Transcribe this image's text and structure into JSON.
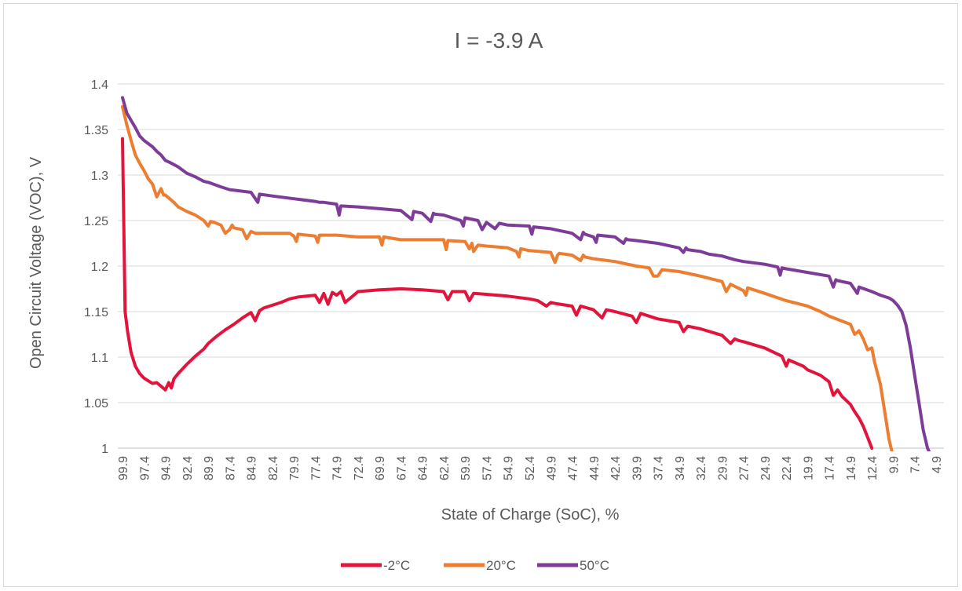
{
  "chart_data": {
    "type": "line",
    "title": "I = -3.9 A",
    "xlabel": "State of Charge (SoC), %",
    "ylabel": "Open Circuit Voltage (VOC), V",
    "ylim": [
      1,
      1.4
    ],
    "yticks": [
      "1",
      "1.05",
      "1.1",
      "1.15",
      "1.2",
      "1.25",
      "1.3",
      "1.35",
      "1.4"
    ],
    "xlim": [
      99.9,
      3.9
    ],
    "xticks": [
      "99.9",
      "97.4",
      "94.9",
      "92.4",
      "89.9",
      "87.4",
      "84.9",
      "82.4",
      "79.9",
      "77.4",
      "74.9",
      "72.4",
      "69.9",
      "67.4",
      "64.9",
      "62.4",
      "59.9",
      "57.4",
      "54.9",
      "52.4",
      "49.9",
      "47.4",
      "44.9",
      "42.4",
      "39.9",
      "37.4",
      "34.9",
      "32.4",
      "29.9",
      "27.4",
      "24.9",
      "22.4",
      "19.9",
      "17.4",
      "14.9",
      "12.4",
      "9.9",
      "7.4",
      "4.9"
    ],
    "grid": "horizontal",
    "legend": "bottom",
    "series": [
      {
        "name": "-2°C",
        "color": "#e3143c",
        "x": [
          99.9,
          99.6,
          99.3,
          98.9,
          98.4,
          97.9,
          97.4,
          96.9,
          96.4,
          95.9,
          95.4,
          94.9,
          94.5,
          94.2,
          93.9,
          93.4,
          92.4,
          91.4,
          90.4,
          89.9,
          88.9,
          87.9,
          86.9,
          85.9,
          84.9,
          84.4,
          83.9,
          83.4,
          82.4,
          81.4,
          80.4,
          79.4,
          78.4,
          77.4,
          76.9,
          76.4,
          75.9,
          75.4,
          74.9,
          74.4,
          73.9,
          72.4,
          69.9,
          67.4,
          64.9,
          62.4,
          61.9,
          61.4,
          59.9,
          59.4,
          58.9,
          57.4,
          54.9,
          52.4,
          51.4,
          50.4,
          49.9,
          49.4,
          47.4,
          46.9,
          46.4,
          44.9,
          43.9,
          43.4,
          42.4,
          40.4,
          39.9,
          39.4,
          37.4,
          34.9,
          34.4,
          33.9,
          32.4,
          29.9,
          28.9,
          28.4,
          27.9,
          27.4,
          24.9,
          22.9,
          22.4,
          22.1,
          21.9,
          20.4,
          19.9,
          18.4,
          17.4,
          16.9,
          16.4,
          15.9,
          14.9,
          14.4,
          13.9,
          13.4,
          12.9,
          12.4
        ],
        "values": [
          1.34,
          1.15,
          1.128,
          1.105,
          1.09,
          1.082,
          1.077,
          1.074,
          1.071,
          1.072,
          1.068,
          1.064,
          1.072,
          1.066,
          1.076,
          1.082,
          1.092,
          1.101,
          1.109,
          1.115,
          1.123,
          1.13,
          1.136,
          1.143,
          1.149,
          1.14,
          1.151,
          1.154,
          1.157,
          1.16,
          1.164,
          1.166,
          1.167,
          1.168,
          1.16,
          1.17,
          1.158,
          1.171,
          1.168,
          1.172,
          1.16,
          1.172,
          1.174,
          1.175,
          1.174,
          1.172,
          1.163,
          1.172,
          1.172,
          1.162,
          1.17,
          1.169,
          1.167,
          1.164,
          1.162,
          1.156,
          1.16,
          1.159,
          1.156,
          1.146,
          1.156,
          1.152,
          1.143,
          1.152,
          1.15,
          1.145,
          1.138,
          1.148,
          1.142,
          1.138,
          1.128,
          1.134,
          1.131,
          1.124,
          1.115,
          1.12,
          1.118,
          1.117,
          1.11,
          1.101,
          1.09,
          1.097,
          1.096,
          1.09,
          1.086,
          1.08,
          1.073,
          1.058,
          1.064,
          1.057,
          1.048,
          1.04,
          1.033,
          1.024,
          1.012,
          1.0
        ]
      },
      {
        "name": "20°C",
        "color": "#ed7d31",
        "x": [
          99.9,
          99.4,
          98.9,
          98.4,
          97.9,
          97.4,
          96.9,
          96.4,
          95.9,
          95.4,
          95.1,
          94.9,
          94.4,
          93.9,
          93.4,
          92.4,
          91.4,
          90.4,
          89.9,
          89.6,
          89.2,
          88.4,
          87.9,
          87.4,
          87.1,
          86.9,
          85.9,
          85.4,
          84.9,
          84.4,
          82.4,
          80.4,
          79.9,
          79.6,
          79.4,
          77.4,
          77.1,
          76.9,
          74.9,
          72.4,
          69.9,
          69.6,
          69.4,
          67.4,
          64.9,
          62.4,
          62.1,
          61.9,
          59.9,
          59.4,
          59.1,
          58.9,
          58.4,
          57.4,
          54.9,
          53.9,
          53.6,
          53.4,
          52.4,
          49.9,
          49.4,
          49.1,
          48.9,
          47.4,
          46.4,
          46.1,
          45.9,
          44.9,
          42.4,
          39.9,
          38.4,
          37.9,
          37.4,
          36.9,
          34.9,
          32.4,
          29.9,
          29.4,
          28.9,
          27.4,
          27.1,
          26.9,
          24.9,
          22.4,
          19.9,
          18.4,
          17.4,
          14.9,
          14.4,
          13.9,
          13.4,
          12.9,
          12.4,
          12.1,
          11.4,
          10.9,
          10.4,
          9.9,
          9.6
        ],
        "values": [
          1.375,
          1.355,
          1.338,
          1.322,
          1.313,
          1.305,
          1.296,
          1.29,
          1.276,
          1.285,
          1.278,
          1.278,
          1.274,
          1.27,
          1.265,
          1.26,
          1.256,
          1.25,
          1.244,
          1.249,
          1.248,
          1.245,
          1.236,
          1.24,
          1.245,
          1.242,
          1.24,
          1.23,
          1.238,
          1.236,
          1.236,
          1.236,
          1.233,
          1.227,
          1.235,
          1.233,
          1.226,
          1.234,
          1.234,
          1.232,
          1.232,
          1.223,
          1.232,
          1.229,
          1.229,
          1.229,
          1.218,
          1.228,
          1.227,
          1.219,
          1.225,
          1.216,
          1.223,
          1.222,
          1.22,
          1.216,
          1.21,
          1.219,
          1.217,
          1.215,
          1.204,
          1.212,
          1.214,
          1.212,
          1.206,
          1.212,
          1.21,
          1.208,
          1.205,
          1.2,
          1.198,
          1.189,
          1.189,
          1.196,
          1.194,
          1.189,
          1.183,
          1.172,
          1.18,
          1.173,
          1.168,
          1.176,
          1.17,
          1.162,
          1.156,
          1.15,
          1.145,
          1.136,
          1.125,
          1.129,
          1.12,
          1.108,
          1.11,
          1.095,
          1.07,
          1.04,
          1.01,
          0.99,
          0.98
        ]
      },
      {
        "name": "50°C",
        "color": "#7d3c98",
        "x": [
          99.9,
          99.4,
          98.9,
          98.4,
          97.9,
          97.4,
          96.4,
          95.9,
          95.4,
          94.9,
          94.4,
          93.4,
          92.4,
          91.4,
          90.4,
          89.9,
          88.4,
          87.4,
          84.9,
          84.1,
          83.9,
          82.4,
          79.9,
          77.4,
          76.9,
          76.4,
          74.9,
          74.6,
          74.4,
          72.4,
          69.9,
          67.4,
          66.1,
          65.9,
          64.9,
          63.9,
          63.6,
          63.4,
          62.4,
          60.4,
          60.1,
          59.9,
          58.4,
          57.9,
          57.4,
          56.4,
          55.9,
          54.9,
          52.4,
          52.1,
          51.9,
          49.9,
          47.4,
          46.4,
          46.1,
          45.9,
          44.9,
          44.6,
          44.4,
          42.4,
          41.4,
          41.1,
          40.9,
          39.9,
          37.4,
          34.9,
          34.4,
          34.1,
          33.9,
          32.4,
          31.4,
          29.9,
          28.4,
          27.4,
          24.9,
          23.4,
          23.1,
          22.9,
          22.4,
          19.9,
          17.4,
          16.9,
          16.6,
          16.4,
          14.9,
          14.1,
          13.9,
          12.4,
          11.9,
          11.4,
          10.4,
          9.9,
          9.4,
          8.9,
          8.4,
          7.9,
          7.4,
          6.9,
          6.4,
          5.9,
          5.4,
          4.9
        ],
        "values": [
          1.385,
          1.368,
          1.36,
          1.352,
          1.343,
          1.338,
          1.331,
          1.326,
          1.322,
          1.316,
          1.314,
          1.309,
          1.302,
          1.298,
          1.293,
          1.292,
          1.287,
          1.284,
          1.281,
          1.27,
          1.279,
          1.277,
          1.274,
          1.271,
          1.27,
          1.27,
          1.268,
          1.256,
          1.266,
          1.265,
          1.263,
          1.261,
          1.251,
          1.26,
          1.258,
          1.249,
          1.258,
          1.257,
          1.256,
          1.25,
          1.244,
          1.253,
          1.25,
          1.24,
          1.248,
          1.241,
          1.247,
          1.245,
          1.244,
          1.235,
          1.243,
          1.241,
          1.236,
          1.229,
          1.237,
          1.235,
          1.232,
          1.226,
          1.234,
          1.232,
          1.225,
          1.23,
          1.229,
          1.228,
          1.225,
          1.22,
          1.215,
          1.22,
          1.218,
          1.216,
          1.213,
          1.211,
          1.207,
          1.205,
          1.202,
          1.199,
          1.19,
          1.198,
          1.197,
          1.193,
          1.189,
          1.177,
          1.185,
          1.184,
          1.181,
          1.17,
          1.177,
          1.172,
          1.17,
          1.168,
          1.165,
          1.162,
          1.157,
          1.15,
          1.135,
          1.11,
          1.08,
          1.05,
          1.02,
          1.0,
          0.99,
          0.985
        ]
      }
    ]
  }
}
